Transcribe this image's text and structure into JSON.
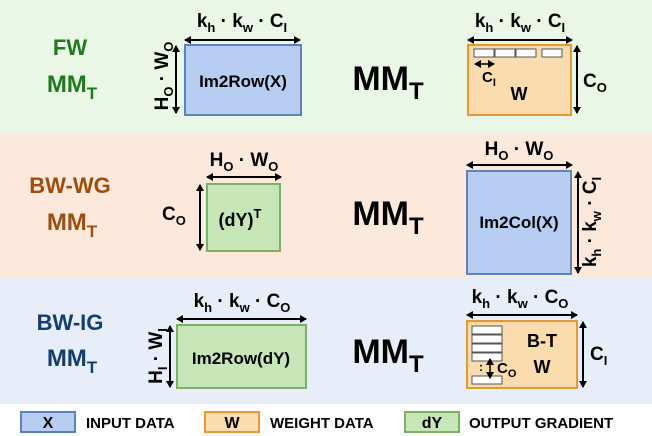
{
  "colors": {
    "fw_bg": "#eaf7e7",
    "wg_bg": "#fde9dc",
    "ig_bg": "#e7eef9",
    "fw_text": "#1f7a1f",
    "wg_text": "#9c4f0d",
    "ig_text": "#123f6e",
    "input_fill": "#b7cef2",
    "input_stroke": "#5d82bd",
    "weight_fill": "#fbdcae",
    "weight_stroke": "#e49a33",
    "grad_fill": "#c6e6b8",
    "grad_stroke": "#7ab067",
    "arrow": "#000000"
  },
  "rows": [
    {
      "label_line1": "FW",
      "label_line2": "MM",
      "label_line2_sub": "T",
      "left_top": "k",
      "left_top_sub": "h",
      "left_top2": " · k",
      "left_top2_sub": "w",
      "left_top3": " · C",
      "left_top3_sub": "I",
      "left_side": "H",
      "left_side_sub": "O",
      "left_side2": " · W",
      "left_side2_sub": "O",
      "left_box": "Im2Row(X)",
      "op": "MM",
      "op_sub": "T",
      "right_top": "k",
      "right_top_sub": "h",
      "right_top2": " · k",
      "right_top2_sub": "w",
      "right_top3": " · C",
      "right_top3_sub": "I",
      "right_side": "C",
      "right_side_sub": "O",
      "right_box": "W",
      "right_inner": "C",
      "right_inner_sub": "I",
      "right_dots": "··"
    },
    {
      "label_line1": "BW-WG",
      "label_line2": "MM",
      "label_line2_sub": "T",
      "left_top": "H",
      "left_top_sub": "O",
      "left_top2": " · W",
      "left_top2_sub": "O",
      "left_side": "C",
      "left_side_sub": "O",
      "left_box": "(dY)",
      "left_box_sup": "T",
      "op": "MM",
      "op_sub": "T",
      "right_top": "H",
      "right_top_sub": "O",
      "right_top2": " · W",
      "right_top2_sub": "O",
      "right_side": "k",
      "right_side_sub": "h",
      "right_side2": " · k",
      "right_side2_sub": "w",
      "right_side3": " · C",
      "right_side3_sub": "I",
      "right_box": "Im2Col(X)"
    },
    {
      "label_line1": "BW-IG",
      "label_line2": "MM",
      "label_line2_sub": "T",
      "left_top": "k",
      "left_top_sub": "h",
      "left_top2": " · k",
      "left_top2_sub": "w",
      "left_top3": " · C",
      "left_top3_sub": "O",
      "left_side": "H",
      "left_side_sub": "I",
      "left_side2": " · W",
      "left_side2_sub": "I",
      "left_box": "Im2Row(dY)",
      "op": "MM",
      "op_sub": "T",
      "right_top": "k",
      "right_top_sub": "h",
      "right_top2": " · k",
      "right_top2_sub": "w",
      "right_top3": " · C",
      "right_top3_sub": "O",
      "right_side": "C",
      "right_side_sub": "I",
      "right_box_line1": "B-T",
      "right_box_line2": "W",
      "right_inner": "C",
      "right_inner_sub": "O",
      "right_dots": ":"
    }
  ],
  "legend": [
    {
      "key": "X",
      "label": "INPUT DATA"
    },
    {
      "key": "W",
      "label": "WEIGHT DATA"
    },
    {
      "key": "dY",
      "label": "OUTPUT GRADIENT"
    }
  ]
}
